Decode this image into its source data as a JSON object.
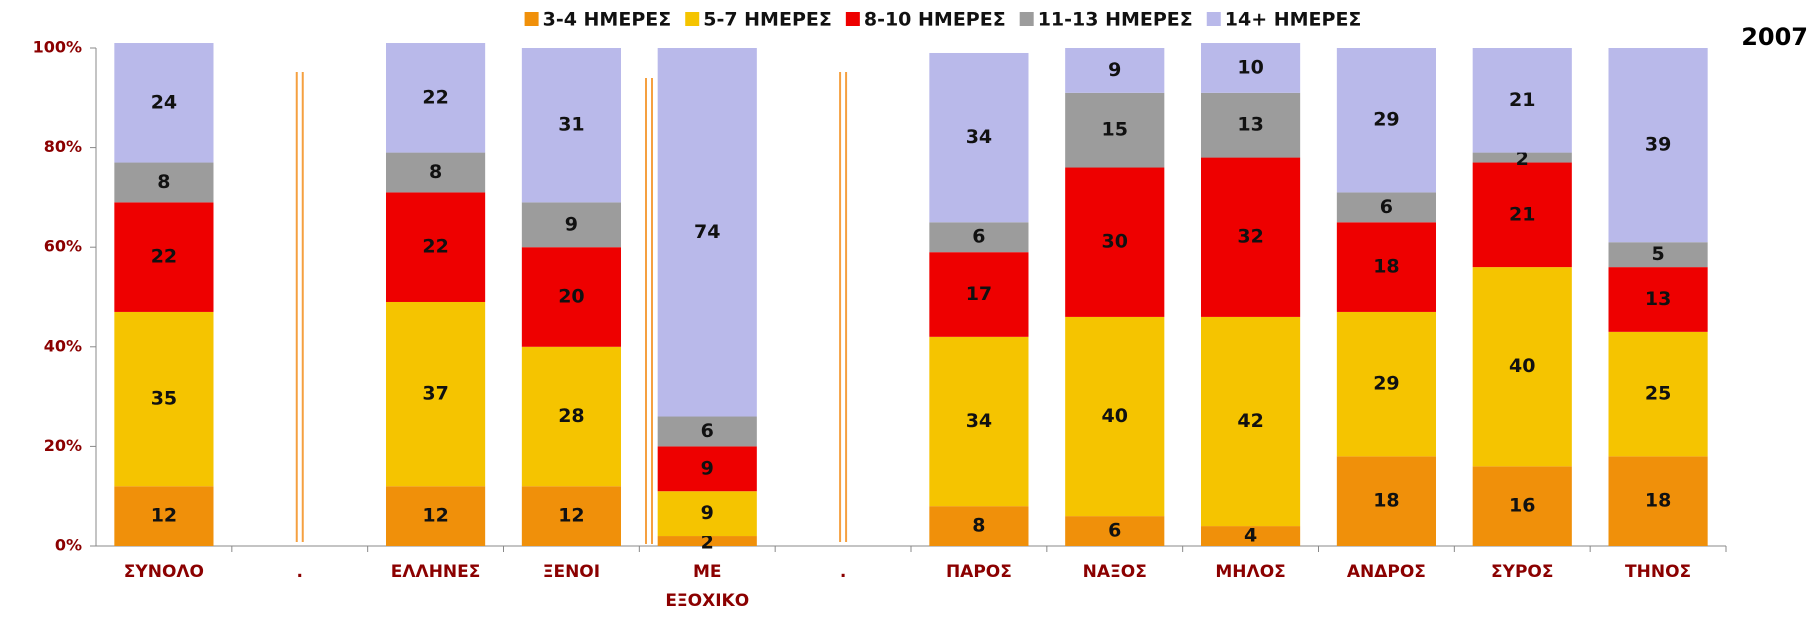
{
  "chart_data": {
    "type": "stacked_bar",
    "title": "2007",
    "categories": [
      "ΣΥΝΟΛΟ",
      ".",
      "ΕΛΛΗΝΕΣ",
      "ΞΕΝΟΙ",
      "ΜΕ ΕΞΟΧΙΚΟ",
      ".",
      "ΠΑΡΟΣ",
      "ΝΑΞΟΣ",
      "ΜΗΛΟΣ",
      "ΑΝΔΡΟΣ",
      "ΣΥΡΟΣ",
      "ΤΗΝΟΣ"
    ],
    "series": [
      {
        "name": "3-4 ΗΜΕΡΕΣ",
        "color": "#f0900a",
        "values": [
          12,
          null,
          12,
          12,
          2,
          null,
          8,
          6,
          4,
          18,
          16,
          18
        ]
      },
      {
        "name": "5-7 ΗΜΕΡΕΣ",
        "color": "#f5c400",
        "values": [
          35,
          null,
          37,
          28,
          9,
          null,
          34,
          40,
          42,
          29,
          40,
          25
        ]
      },
      {
        "name": "8-10 ΗΜΕΡΕΣ",
        "color": "#ee0000",
        "values": [
          22,
          null,
          22,
          20,
          9,
          null,
          17,
          30,
          32,
          18,
          21,
          13
        ]
      },
      {
        "name": "11-13 ΗΜΕΡΕΣ",
        "color": "#9c9c9c",
        "values": [
          8,
          null,
          8,
          9,
          6,
          null,
          6,
          15,
          13,
          6,
          2,
          5
        ]
      },
      {
        "name": "14+ ΗΜΕΡΕΣ",
        "color": "#b9b9ea",
        "values": [
          24,
          null,
          22,
          31,
          74,
          null,
          34,
          9,
          10,
          29,
          21,
          39
        ]
      }
    ],
    "ylim": [
      0,
      100
    ],
    "yticks": [
      {
        "value": 0,
        "label": "0%"
      },
      {
        "value": 20,
        "label": "20%"
      },
      {
        "value": 40,
        "label": "40%"
      },
      {
        "value": 60,
        "label": "60%"
      },
      {
        "value": 80,
        "label": "80%"
      },
      {
        "value": 100,
        "label": "100%"
      }
    ],
    "grid": false
  }
}
